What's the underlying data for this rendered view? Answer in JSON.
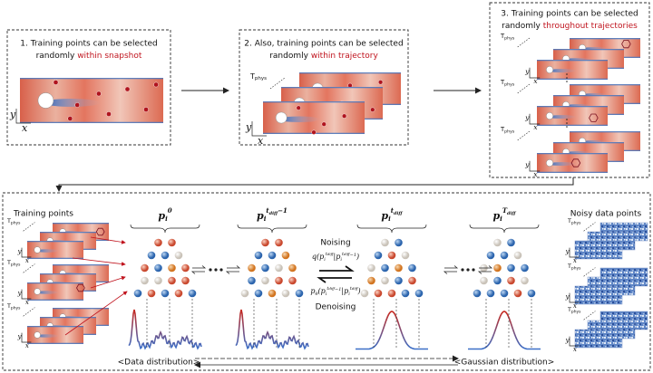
{
  "axes": {
    "y": "y",
    "x": "x",
    "t_base": "T",
    "t_sub": "phys"
  },
  "panels": [
    {
      "line1": "1. Training points can be selected",
      "line2_plain": "randomly ",
      "line2_highlight": "within snapshot"
    },
    {
      "line1": "2. Also, training points can be selected",
      "line2_plain": "randomly ",
      "line2_highlight": "within trajectory"
    },
    {
      "line1": "3. Training points can be selected",
      "line2_plain": "randomly ",
      "line2_highlight": "throughout trajectories"
    }
  ],
  "bottom": {
    "training_points": "Training points",
    "noisy_data_points": "Noisy data points",
    "data_distribution": "<Data distribution>",
    "gaussian_distribution": "<Gaussian distribution>",
    "noising": "Noising",
    "denoising": "Denoising",
    "states": [
      {
        "base": "p",
        "sub": "i",
        "sup": "0"
      },
      {
        "base": "p",
        "sub": "i",
        "sup": "t",
        "sup_sub": "diff",
        "sup_tail": "−1"
      },
      {
        "base": "p",
        "sub": "i",
        "sup": "t",
        "sup_sub": "diff"
      },
      {
        "base": "p",
        "sub": "i",
        "sup": "T",
        "sup_sub": "diff"
      }
    ],
    "forward": {
      "fn": "q",
      "open": "(",
      "bar": "|",
      "close": ")"
    },
    "reverse": {
      "fn": "p",
      "fn_sub": "θ",
      "open": "(",
      "bar": "|",
      "close": ")"
    }
  }
}
